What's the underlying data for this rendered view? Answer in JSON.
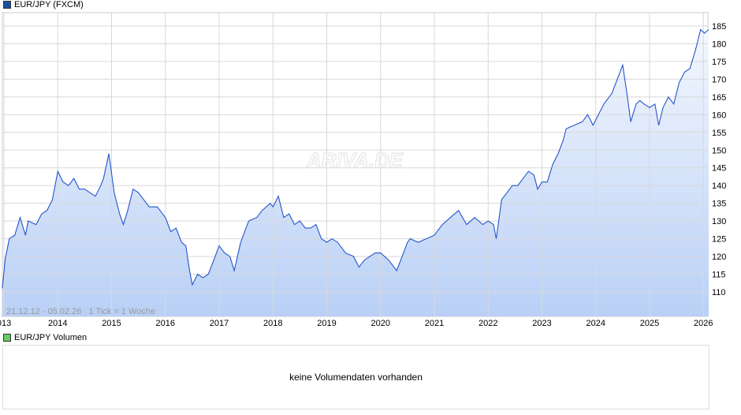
{
  "price_legend": {
    "label": "EUR/JPY (FXCM)",
    "color": "#1a4fa0"
  },
  "volume_legend": {
    "label": "EUR/JPY Volumen",
    "color": "#66cc66"
  },
  "volume_message": "keine Volumendaten vorhanden",
  "watermark": "ARIVA.DE",
  "chart_data": {
    "type": "area",
    "title": "EUR/JPY (FXCM)",
    "range_label": "21.12.12 - 05.02.26",
    "tick_label": "1 Tick = 1 Woche",
    "x_ticks": [
      "013",
      "2014",
      "2015",
      "2016",
      "2017",
      "2018",
      "2019",
      "2020",
      "2021",
      "2022",
      "2023",
      "2024",
      "2025",
      "2026"
    ],
    "y_ticks": [
      110,
      115,
      120,
      125,
      130,
      135,
      140,
      145,
      150,
      155,
      160,
      165,
      170,
      175,
      180,
      185
    ],
    "ylim": [
      107,
      188
    ],
    "xlim": [
      2012.97,
      2026.1
    ],
    "line_color": "#2255cc",
    "grid": true,
    "series": [
      {
        "name": "EUR/JPY",
        "points": [
          [
            2012.97,
            111
          ],
          [
            2013.02,
            119
          ],
          [
            2013.1,
            125
          ],
          [
            2013.2,
            126
          ],
          [
            2013.3,
            131
          ],
          [
            2013.4,
            126
          ],
          [
            2013.45,
            130
          ],
          [
            2013.6,
            129
          ],
          [
            2013.7,
            132
          ],
          [
            2013.8,
            133
          ],
          [
            2013.9,
            136
          ],
          [
            2014.0,
            144
          ],
          [
            2014.1,
            141
          ],
          [
            2014.2,
            140
          ],
          [
            2014.3,
            142
          ],
          [
            2014.4,
            139
          ],
          [
            2014.5,
            139
          ],
          [
            2014.6,
            138
          ],
          [
            2014.7,
            137
          ],
          [
            2014.8,
            140
          ],
          [
            2014.85,
            142
          ],
          [
            2014.95,
            149
          ],
          [
            2015.05,
            138
          ],
          [
            2015.15,
            132
          ],
          [
            2015.22,
            129
          ],
          [
            2015.3,
            133
          ],
          [
            2015.4,
            139
          ],
          [
            2015.5,
            138
          ],
          [
            2015.6,
            136
          ],
          [
            2015.7,
            134
          ],
          [
            2015.85,
            134
          ],
          [
            2016.0,
            131
          ],
          [
            2016.1,
            127
          ],
          [
            2016.2,
            128
          ],
          [
            2016.3,
            124
          ],
          [
            2016.38,
            123
          ],
          [
            2016.45,
            116
          ],
          [
            2016.5,
            112
          ],
          [
            2016.6,
            115
          ],
          [
            2016.7,
            114
          ],
          [
            2016.8,
            115
          ],
          [
            2016.9,
            119
          ],
          [
            2017.0,
            123
          ],
          [
            2017.1,
            121
          ],
          [
            2017.2,
            120
          ],
          [
            2017.28,
            116
          ],
          [
            2017.4,
            124
          ],
          [
            2017.5,
            128
          ],
          [
            2017.55,
            130
          ],
          [
            2017.7,
            131
          ],
          [
            2017.8,
            133
          ],
          [
            2017.95,
            135
          ],
          [
            2018.0,
            134
          ],
          [
            2018.1,
            137
          ],
          [
            2018.2,
            131
          ],
          [
            2018.3,
            132
          ],
          [
            2018.4,
            129
          ],
          [
            2018.5,
            130
          ],
          [
            2018.6,
            128
          ],
          [
            2018.7,
            128
          ],
          [
            2018.8,
            129
          ],
          [
            2018.9,
            125
          ],
          [
            2019.0,
            124
          ],
          [
            2019.1,
            125
          ],
          [
            2019.2,
            124
          ],
          [
            2019.35,
            121
          ],
          [
            2019.5,
            120
          ],
          [
            2019.6,
            117
          ],
          [
            2019.7,
            119
          ],
          [
            2019.8,
            120
          ],
          [
            2019.9,
            121
          ],
          [
            2020.0,
            121
          ],
          [
            2020.15,
            119
          ],
          [
            2020.3,
            116
          ],
          [
            2020.4,
            120
          ],
          [
            2020.5,
            124
          ],
          [
            2020.55,
            125
          ],
          [
            2020.7,
            124
          ],
          [
            2020.85,
            125
          ],
          [
            2021.0,
            126
          ],
          [
            2021.15,
            129
          ],
          [
            2021.3,
            131
          ],
          [
            2021.45,
            133
          ],
          [
            2021.6,
            129
          ],
          [
            2021.75,
            131
          ],
          [
            2021.9,
            129
          ],
          [
            2022.0,
            130
          ],
          [
            2022.1,
            129
          ],
          [
            2022.15,
            125
          ],
          [
            2022.25,
            136
          ],
          [
            2022.35,
            138
          ],
          [
            2022.45,
            140
          ],
          [
            2022.55,
            140
          ],
          [
            2022.65,
            142
          ],
          [
            2022.75,
            144
          ],
          [
            2022.85,
            143
          ],
          [
            2022.92,
            139
          ],
          [
            2023.0,
            141
          ],
          [
            2023.1,
            141
          ],
          [
            2023.2,
            146
          ],
          [
            2023.3,
            149
          ],
          [
            2023.4,
            153
          ],
          [
            2023.45,
            156
          ],
          [
            2023.6,
            157
          ],
          [
            2023.75,
            158
          ],
          [
            2023.85,
            160
          ],
          [
            2023.95,
            157
          ],
          [
            2024.05,
            160
          ],
          [
            2024.15,
            163
          ],
          [
            2024.3,
            166
          ],
          [
            2024.4,
            170
          ],
          [
            2024.5,
            174
          ],
          [
            2024.58,
            166
          ],
          [
            2024.65,
            158
          ],
          [
            2024.75,
            163
          ],
          [
            2024.82,
            164
          ],
          [
            2024.9,
            163
          ],
          [
            2025.0,
            162
          ],
          [
            2025.1,
            163
          ],
          [
            2025.17,
            157
          ],
          [
            2025.25,
            162
          ],
          [
            2025.35,
            165
          ],
          [
            2025.45,
            163
          ],
          [
            2025.55,
            169
          ],
          [
            2025.65,
            172
          ],
          [
            2025.75,
            173
          ],
          [
            2025.85,
            178
          ],
          [
            2025.95,
            184
          ],
          [
            2026.02,
            183
          ],
          [
            2026.1,
            184
          ]
        ]
      }
    ]
  }
}
